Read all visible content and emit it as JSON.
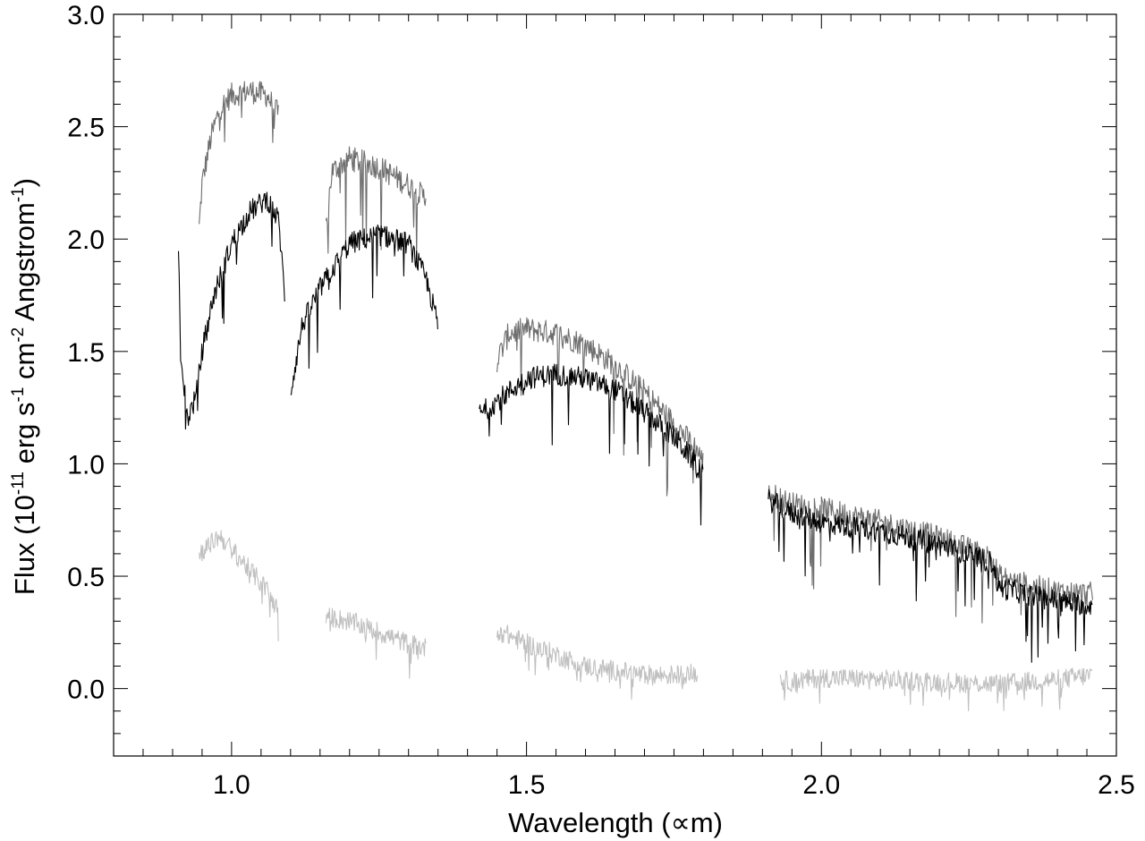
{
  "chart_data": {
    "type": "line",
    "title": "",
    "xlabel": "Wavelength (∝m)",
    "ylabel": {
      "prefix": "Flux (10",
      "exp1": "-11",
      "mid1": " erg s",
      "exp2": "-1",
      "mid2": " cm",
      "exp3": "-2",
      "mid3": " Angstrom",
      "exp4": "-1",
      "suffix": ")"
    },
    "xlim": [
      0.8,
      2.5
    ],
    "ylim": [
      -0.3,
      3.0
    ],
    "x_ticks": [
      1.0,
      1.5,
      2.0,
      2.5
    ],
    "x_tick_labels": [
      "1.0",
      "1.5",
      "2.0",
      "2.5"
    ],
    "x_minor_step": 0.05,
    "y_ticks": [
      0.0,
      0.5,
      1.0,
      1.5,
      2.0,
      2.5,
      3.0
    ],
    "y_tick_labels": [
      "0.0",
      "0.5",
      "1.0",
      "1.5",
      "2.0",
      "2.5",
      "3.0"
    ],
    "y_minor_step": 0.1,
    "grid": false,
    "legend": "none",
    "series": [
      {
        "color": "#6e6e6e",
        "noise": 0.055,
        "dips": 0.35,
        "segments": [
          [
            [
              0.945,
              2.05
            ],
            [
              0.95,
              2.25
            ],
            [
              0.965,
              2.45
            ],
            [
              0.98,
              2.58
            ],
            [
              1.0,
              2.64
            ],
            [
              1.03,
              2.66
            ],
            [
              1.06,
              2.64
            ],
            [
              1.08,
              2.55
            ]
          ],
          [
            [
              1.16,
              2.05
            ],
            [
              1.17,
              2.3
            ],
            [
              1.2,
              2.36
            ],
            [
              1.25,
              2.32
            ],
            [
              1.3,
              2.24
            ],
            [
              1.33,
              2.18
            ]
          ],
          [
            [
              1.45,
              1.46
            ],
            [
              1.47,
              1.58
            ],
            [
              1.5,
              1.6
            ],
            [
              1.55,
              1.58
            ],
            [
              1.6,
              1.53
            ],
            [
              1.65,
              1.44
            ],
            [
              1.7,
              1.32
            ],
            [
              1.75,
              1.18
            ],
            [
              1.79,
              1.06
            ],
            [
              1.8,
              1.0
            ]
          ],
          [
            [
              1.91,
              0.87
            ],
            [
              1.95,
              0.82
            ],
            [
              2.0,
              0.8
            ],
            [
              2.1,
              0.74
            ],
            [
              2.2,
              0.67
            ],
            [
              2.29,
              0.58
            ],
            [
              2.3,
              0.5
            ],
            [
              2.35,
              0.46
            ],
            [
              2.4,
              0.43
            ],
            [
              2.46,
              0.42
            ]
          ]
        ]
      },
      {
        "color": "#000000",
        "noise": 0.05,
        "dips": 0.3,
        "segments": [
          [
            [
              0.91,
              1.93
            ],
            [
              0.915,
              1.45
            ],
            [
              0.925,
              1.2
            ],
            [
              0.94,
              1.3
            ],
            [
              0.95,
              1.5
            ],
            [
              0.97,
              1.75
            ],
            [
              1.0,
              1.98
            ],
            [
              1.03,
              2.12
            ],
            [
              1.06,
              2.18
            ],
            [
              1.08,
              2.08
            ],
            [
              1.09,
              1.75
            ]
          ],
          [
            [
              1.1,
              1.32
            ],
            [
              1.12,
              1.62
            ],
            [
              1.15,
              1.78
            ],
            [
              1.2,
              1.98
            ],
            [
              1.25,
              2.02
            ],
            [
              1.3,
              1.98
            ],
            [
              1.33,
              1.82
            ],
            [
              1.35,
              1.62
            ]
          ],
          [
            [
              1.42,
              1.22
            ],
            [
              1.45,
              1.28
            ],
            [
              1.5,
              1.38
            ],
            [
              1.55,
              1.4
            ],
            [
              1.6,
              1.38
            ],
            [
              1.65,
              1.33
            ],
            [
              1.7,
              1.23
            ],
            [
              1.75,
              1.12
            ],
            [
              1.8,
              0.96
            ]
          ],
          [
            [
              1.91,
              0.84
            ],
            [
              1.95,
              0.78
            ],
            [
              2.0,
              0.74
            ],
            [
              2.1,
              0.7
            ],
            [
              2.2,
              0.64
            ],
            [
              2.29,
              0.56
            ],
            [
              2.3,
              0.45
            ],
            [
              2.35,
              0.42
            ],
            [
              2.4,
              0.39
            ],
            [
              2.46,
              0.37
            ]
          ]
        ]
      },
      {
        "color": "#c0c0c0",
        "noise": 0.045,
        "dips": 0.12,
        "segments": [
          [
            [
              0.945,
              0.6
            ],
            [
              0.98,
              0.68
            ],
            [
              1.02,
              0.56
            ],
            [
              1.06,
              0.44
            ],
            [
              1.08,
              0.34
            ]
          ],
          [
            [
              1.16,
              0.32
            ],
            [
              1.2,
              0.3
            ],
            [
              1.25,
              0.25
            ],
            [
              1.3,
              0.2
            ],
            [
              1.33,
              0.18
            ]
          ],
          [
            [
              1.45,
              0.26
            ],
            [
              1.5,
              0.2
            ],
            [
              1.55,
              0.15
            ],
            [
              1.6,
              0.1
            ],
            [
              1.65,
              0.08
            ],
            [
              1.7,
              0.06
            ],
            [
              1.75,
              0.06
            ],
            [
              1.79,
              0.07
            ]
          ],
          [
            [
              1.93,
              0.04
            ],
            [
              1.95,
              0.03
            ],
            [
              2.0,
              0.05
            ],
            [
              2.1,
              0.04
            ],
            [
              2.2,
              0.03
            ],
            [
              2.3,
              0.02
            ],
            [
              2.4,
              0.04
            ],
            [
              2.46,
              0.06
            ]
          ]
        ]
      }
    ]
  }
}
